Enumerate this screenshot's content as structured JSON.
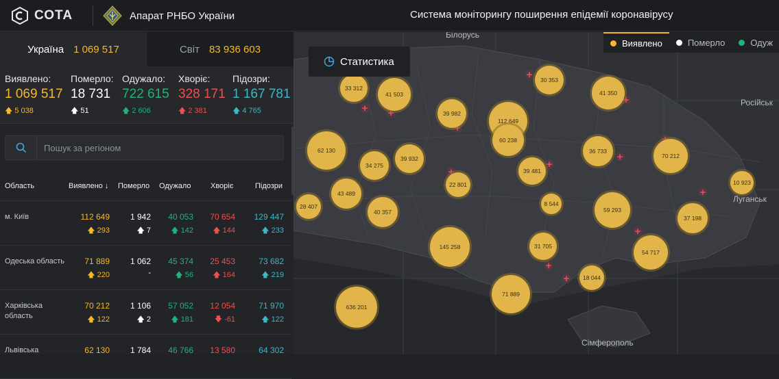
{
  "header": {
    "logo_text": "СОТА",
    "org_name": "Апарат РНБО України",
    "title": "Система моніторингу поширення епідемії коронавірусу"
  },
  "tabs": [
    {
      "label": "Україна",
      "count": "1 069 517"
    },
    {
      "label": "Світ",
      "count": "83 936 603"
    }
  ],
  "summary": [
    {
      "label": "Виявлено:",
      "value": "1 069 517",
      "delta": "5 038",
      "color": "#f5b92a"
    },
    {
      "label": "Померло:",
      "value": "18 731",
      "delta": "51",
      "color": "#ffffff"
    },
    {
      "label": "Одужало:",
      "value": "722 615",
      "delta": "2 606",
      "color": "#22b37a"
    },
    {
      "label": "Хворіє:",
      "value": "328 171",
      "delta": "2 381",
      "color": "#ef4f4f"
    },
    {
      "label": "Підозри:",
      "value": "1 167 781",
      "delta": "4 765",
      "color": "#3fb6c6"
    }
  ],
  "search": {
    "placeholder": "Пошук за регіоном"
  },
  "table": {
    "headers": [
      "Область",
      "Виявлено",
      "Померло",
      "Одужало",
      "Хворіє",
      "Підозри"
    ],
    "rows": [
      {
        "name": "м. Київ",
        "detected": "112 649",
        "detected_d": "293",
        "died": "1 942",
        "died_d": "7",
        "recovered": "40 053",
        "recovered_d": "142",
        "sick": "70 654",
        "sick_d": "144",
        "sick_dir": "up",
        "suspect": "129 447",
        "suspect_d": "233"
      },
      {
        "name": "Одеська область",
        "detected": "71 889",
        "detected_d": "220",
        "died": "1 062",
        "died_d": "-",
        "recovered": "45 374",
        "recovered_d": "56",
        "sick": "25 453",
        "sick_d": "164",
        "sick_dir": "up",
        "suspect": "73 682",
        "suspect_d": "219"
      },
      {
        "name": "Харківська область",
        "detected": "70 212",
        "detected_d": "122",
        "died": "1 106",
        "died_d": "2",
        "recovered": "57 052",
        "recovered_d": "181",
        "sick": "12 054",
        "sick_d": "-61",
        "sick_dir": "down",
        "suspect": "71 970",
        "suspect_d": "122"
      },
      {
        "name": "Львівська",
        "detected": "62 130",
        "detected_d": "",
        "died": "1 784",
        "died_d": "",
        "recovered": "46 766",
        "recovered_d": "",
        "sick": "13 580",
        "sick_d": "",
        "sick_dir": "up",
        "suspect": "64 302",
        "suspect_d": ""
      }
    ]
  },
  "map": {
    "stats_button": "Статистика",
    "legend": [
      {
        "label": "Виявлено",
        "color": "#f5b92a"
      },
      {
        "label": "Померло",
        "color": "#ffffff"
      },
      {
        "label": "Одуж",
        "color": "#22b37a"
      }
    ],
    "cities": [
      "Білорусь",
      "Російськ",
      "Луганськ",
      "Сімферополь"
    ],
    "bubbles": [
      {
        "label": "33 312"
      },
      {
        "label": "41 503"
      },
      {
        "label": "30 353"
      },
      {
        "label": "41 350"
      },
      {
        "label": "39 982"
      },
      {
        "label": "112 649"
      },
      {
        "label": "60 238"
      },
      {
        "label": "62 130"
      },
      {
        "label": "34 275"
      },
      {
        "label": "39 932"
      },
      {
        "label": "36 733"
      },
      {
        "label": "70 212"
      },
      {
        "label": "39 481"
      },
      {
        "label": "22 801"
      },
      {
        "label": "10 923"
      },
      {
        "label": "43 489"
      },
      {
        "label": "28 407"
      },
      {
        "label": "40 357"
      },
      {
        "label": "8 544"
      },
      {
        "label": "59 293"
      },
      {
        "label": "37 198"
      },
      {
        "label": "145 258"
      },
      {
        "label": "31 705"
      },
      {
        "label": "54 717"
      },
      {
        "label": "71 889"
      },
      {
        "label": "18 044"
      },
      {
        "label": "636 201"
      }
    ]
  }
}
